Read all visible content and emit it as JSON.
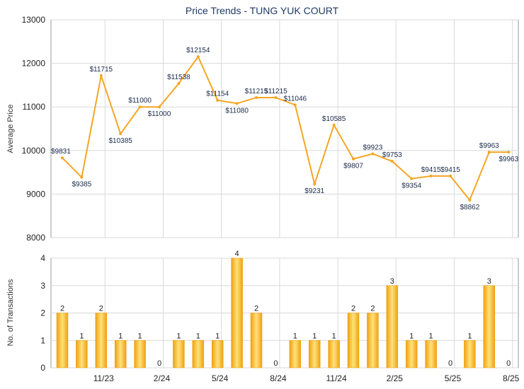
{
  "title": "Price Trends - TUNG YUK COURT",
  "colors": {
    "line": "#f5a623",
    "bar_light": "#ffe27a",
    "bar_dark": "#f0a010",
    "grid": "#d9d9d9"
  },
  "chart_data": [
    {
      "type": "line",
      "ylabel": "Average Price",
      "ylim": [
        8000,
        13000
      ],
      "yticks": [
        8000,
        9000,
        10000,
        11000,
        12000,
        13000
      ],
      "grid": true,
      "x": [
        0,
        1,
        2,
        3,
        4,
        5,
        6,
        7,
        8,
        9,
        10,
        11,
        12,
        13,
        14,
        15,
        16,
        17,
        18,
        19,
        20,
        21,
        22,
        23
      ],
      "values": [
        9831,
        9385,
        11715,
        10385,
        11000,
        11000,
        11538,
        12154,
        11154,
        11080,
        11215,
        11215,
        11046,
        9231,
        10585,
        9807,
        9923,
        9753,
        9354,
        9415,
        9415,
        8862,
        9963,
        9963
      ],
      "labels": [
        "$9831",
        "$9385",
        "$11715",
        "$10385",
        "$11000",
        "$11000",
        "$11538",
        "$12154",
        "$11154",
        "$11080",
        "$11215",
        "$11215",
        "$11046",
        "$9231",
        "$10585",
        "$9807",
        "$9923",
        "$9753",
        "$9354",
        "$9415",
        "$9415",
        "$8862",
        "$9963",
        "$9963"
      ]
    },
    {
      "type": "bar",
      "ylabel": "No. of Transactions",
      "ylim": [
        0,
        4
      ],
      "yticks": [
        "0",
        "1",
        "2",
        "3",
        "4"
      ],
      "grid": true,
      "xtick_labels": [
        "11/23",
        "2/24",
        "5/24",
        "8/24",
        "11/24",
        "2/25",
        "5/25",
        "8/25"
      ],
      "values": [
        2,
        1,
        2,
        1,
        1,
        0,
        1,
        1,
        1,
        4,
        2,
        0,
        1,
        1,
        1,
        2,
        2,
        3,
        1,
        1,
        0,
        1,
        3,
        0
      ],
      "labels": [
        "2",
        "1",
        "2",
        "1",
        "1",
        "0",
        "1",
        "1",
        "1",
        "4",
        "2",
        "0",
        "1",
        "1",
        "1",
        "2",
        "2",
        "3",
        "1",
        "1",
        "0",
        "1",
        "3",
        "0"
      ]
    }
  ]
}
